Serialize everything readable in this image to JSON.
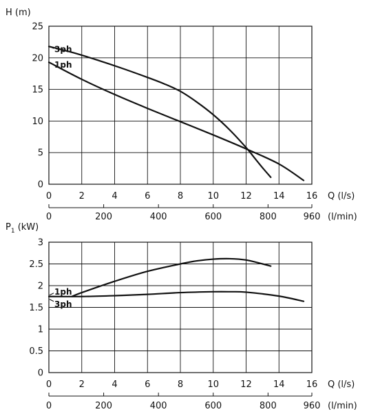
{
  "chart_data": [
    {
      "type": "line",
      "title": "",
      "ylabel": "H (m)",
      "xlabel": "Q (l/s)",
      "secondary_xlabel": "(l/min)",
      "xlim": [
        0,
        16
      ],
      "ylim": [
        0,
        25
      ],
      "xticks": [
        "0",
        "2",
        "4",
        "6",
        "8",
        "10",
        "12",
        "14",
        "16"
      ],
      "yticks": [
        "0",
        "5",
        "10",
        "15",
        "20",
        "25"
      ],
      "secondary_xlim": [
        0,
        960
      ],
      "secondary_xticks": [
        "0",
        "200",
        "400",
        "600",
        "800",
        "960"
      ],
      "grid": true,
      "series": [
        {
          "name": "3ph",
          "x": [
            0,
            1.5,
            3,
            4.5,
            6,
            7,
            8,
            9,
            10,
            11,
            12,
            12.5,
            13,
            13.5
          ],
          "y": [
            21.8,
            20.8,
            19.6,
            18.3,
            16.9,
            15.9,
            14.7,
            13.0,
            11.0,
            8.6,
            5.8,
            4.2,
            2.6,
            1.1
          ]
        },
        {
          "name": "1ph",
          "x": [
            0,
            2,
            4,
            6,
            8,
            10,
            12,
            14,
            15.5
          ],
          "y": [
            19.3,
            16.6,
            14.2,
            12.0,
            9.9,
            7.8,
            5.6,
            3.2,
            0.6
          ]
        }
      ]
    },
    {
      "type": "line",
      "title": "",
      "ylabel": "P1 (kW)",
      "xlabel": "Q (l/s)",
      "secondary_xlabel": "(l/min)",
      "xlim": [
        0,
        16
      ],
      "ylim": [
        0,
        3
      ],
      "xticks": [
        "0",
        "2",
        "4",
        "6",
        "8",
        "10",
        "12",
        "14",
        "16"
      ],
      "yticks": [
        "0",
        "0.5",
        "1",
        "1.5",
        "2",
        "2.5",
        "3"
      ],
      "secondary_xlim": [
        0,
        960
      ],
      "secondary_xticks": [
        "0",
        "200",
        "400",
        "600",
        "800",
        "960"
      ],
      "grid": true,
      "series": [
        {
          "name": "1ph",
          "x": [
            1.4,
            2,
            4,
            6,
            8,
            9,
            10,
            11,
            12,
            13,
            13.5
          ],
          "y": [
            1.75,
            1.84,
            2.1,
            2.33,
            2.5,
            2.57,
            2.61,
            2.62,
            2.59,
            2.5,
            2.45
          ]
        },
        {
          "name": "3ph",
          "x": [
            0,
            2,
            4,
            6,
            8,
            10,
            11,
            12,
            14,
            15.5
          ],
          "y": [
            1.75,
            1.75,
            1.77,
            1.8,
            1.84,
            1.86,
            1.86,
            1.85,
            1.76,
            1.64
          ]
        }
      ]
    }
  ]
}
